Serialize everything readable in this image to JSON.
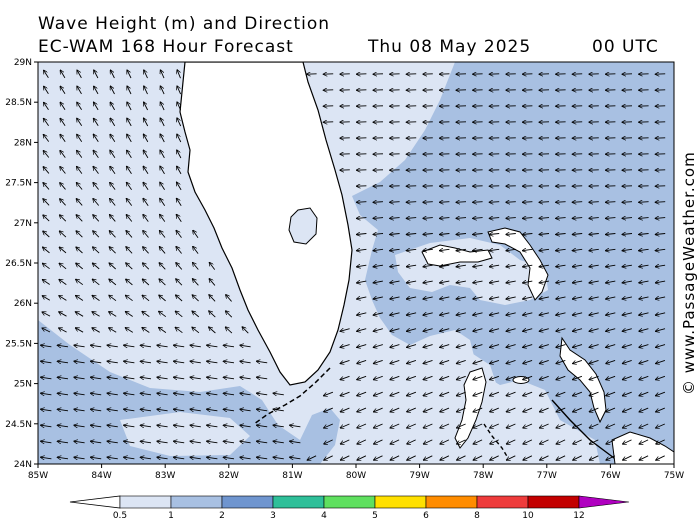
{
  "header": {
    "title_line1": "Wave Height (m) and Direction",
    "title_line2": "EC-WAM 168 Hour Forecast",
    "date": "Thu 08 May 2025",
    "time": "00 UTC"
  },
  "credit": "© www.PassageWeather.com",
  "axes": {
    "lat_labels": [
      "29N",
      "28.5N",
      "28N",
      "27.5N",
      "27N",
      "26.5N",
      "26N",
      "25.5N",
      "25N",
      "24.5N",
      "24N"
    ],
    "lon_labels": [
      "85W",
      "84W",
      "83W",
      "82W",
      "81W",
      "80W",
      "79W",
      "78W",
      "77W",
      "76W",
      "75W"
    ]
  },
  "legend": {
    "labels": [
      "0.5",
      "1",
      "2",
      "3",
      "4",
      "5",
      "6",
      "8",
      "10",
      "12"
    ],
    "colors": [
      "#dce5f4",
      "#a8c0e2",
      "#6f95cf",
      "#2fbf99",
      "#5fe05f",
      "#ffe000",
      "#ff8c00",
      "#ee3b3b",
      "#c30000",
      "#b000c0"
    ]
  },
  "colors": {
    "land": "#ffffff",
    "calm_sea": "#dce5f4",
    "wave_1m": "#a8c0e2",
    "coastline": "#000000"
  },
  "map": {
    "lon_range": [
      -85,
      -75
    ],
    "lat_range": [
      24,
      29
    ],
    "dominant_wave_direction": "east winds / westward propagation east of Florida, variable in Gulf of Mexico"
  }
}
